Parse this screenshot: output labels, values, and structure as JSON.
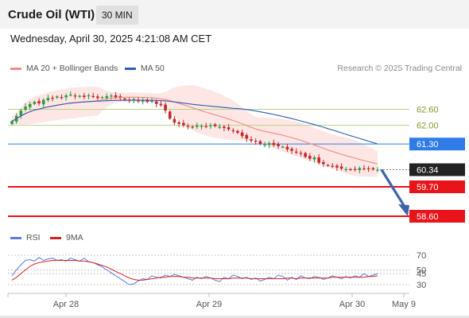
{
  "header": {
    "title": "Crude Oil (WTI)",
    "timeframe": "30 MIN"
  },
  "datetime": "Wednesday, April 30, 2025 4:21:08 AM CET",
  "legend": {
    "ma20_label": "MA 20 + Bollinger Bands",
    "ma50_label": "MA 50",
    "rsi_label": "RSI",
    "rsi_ma_label": "9MA",
    "credit": "Research © 2025 Trading Central"
  },
  "colors": {
    "ma20": "#f08a82",
    "ma50": "#2f5cb5",
    "bollinger_fill": "#fde3e1",
    "bull_candle": "#2e9b43",
    "bear_candle": "#c62828",
    "support": "#e8141a",
    "pivot": "#2f7ce8",
    "resistance_line": "#b9d18a",
    "resistance_text": "#7a9a2a",
    "arrow": "#3c64a8",
    "rsi": "#5b7be0",
    "rsi_ma": "#d62020"
  },
  "chart_data": {
    "type": "candlestick",
    "instrument": "Crude Oil (WTI)",
    "timeframe": "30 MIN",
    "price_axis": {
      "ylim": [
        58.4,
        63.4
      ]
    },
    "x_ticks": [
      "Apr 28",
      "Apr 29",
      "Apr 30",
      "May 9"
    ],
    "closes": [
      62.15,
      62.35,
      62.55,
      62.7,
      62.8,
      62.88,
      62.82,
      62.95,
      63.02,
      63.0,
      63.08,
      63.05,
      63.12,
      63.15,
      63.08,
      63.1,
      63.06,
      63.12,
      63.08,
      63.02,
      63.05,
      63.09,
      63.11,
      63.05,
      63.02,
      62.96,
      62.92,
      62.98,
      62.9,
      62.95,
      62.88,
      62.92,
      62.8,
      62.75,
      62.55,
      62.25,
      62.1,
      62.05,
      62.0,
      61.95,
      61.92,
      62.0,
      61.98,
      61.96,
      62.0,
      61.97,
      61.95,
      61.9,
      61.85,
      61.8,
      61.72,
      61.6,
      61.5,
      61.42,
      61.38,
      61.3,
      61.28,
      61.33,
      61.26,
      61.22,
      61.2,
      61.1,
      61.05,
      60.98,
      60.95,
      60.82,
      60.75,
      60.8,
      60.6,
      60.55,
      60.5,
      60.48,
      60.42,
      60.38,
      60.36,
      60.34,
      60.36,
      60.4,
      60.38,
      60.36,
      60.35,
      60.34
    ],
    "levels": [
      {
        "value": 62.6,
        "label": "62.60",
        "type": "resistance"
      },
      {
        "value": 62.0,
        "label": "62.00",
        "type": "resistance"
      },
      {
        "value": 61.3,
        "label": "61.30",
        "type": "pivot"
      },
      {
        "value": 60.34,
        "label": "60.34",
        "type": "last"
      },
      {
        "value": 59.7,
        "label": "59.70",
        "type": "support"
      },
      {
        "value": 58.6,
        "label": "58.60",
        "type": "support"
      }
    ],
    "projection": {
      "from": 60.34,
      "to": 58.6
    },
    "rsi": {
      "ylim": [
        20,
        80
      ],
      "levels": [
        70,
        50,
        45,
        30
      ],
      "tick_labels": [
        "70",
        "50",
        "45",
        "30"
      ],
      "values": [
        42,
        50,
        57,
        63,
        64,
        62,
        67,
        63,
        65,
        66,
        63,
        64,
        62,
        66,
        64,
        62,
        66,
        61,
        60,
        57,
        54,
        50,
        46,
        42,
        38,
        34,
        30,
        31,
        35,
        38,
        37,
        42,
        40,
        39,
        43,
        41,
        44,
        42,
        40,
        38,
        36,
        40,
        38,
        41,
        39,
        36,
        34,
        40,
        38,
        43,
        41,
        38,
        40,
        37,
        39,
        35,
        37,
        40,
        38,
        43,
        41,
        36,
        40,
        37,
        42,
        39,
        38,
        41,
        40,
        37,
        39,
        42,
        40,
        38,
        41,
        39,
        42,
        40,
        45,
        41,
        43,
        45
      ],
      "ma_values": [
        36,
        40,
        45,
        50,
        55,
        58,
        60,
        61,
        62,
        63,
        63,
        63,
        63,
        63,
        63,
        62,
        62,
        61,
        60,
        58,
        56,
        54,
        51,
        48,
        45,
        42,
        39,
        37,
        36,
        36,
        37,
        38,
        39,
        40,
        40,
        41,
        41,
        41,
        40,
        40,
        39,
        39,
        39,
        39,
        39,
        38,
        38,
        38,
        38,
        39,
        39,
        39,
        39,
        38,
        38,
        38,
        38,
        38,
        38,
        38,
        38,
        39,
        39,
        38,
        39,
        39,
        39,
        39,
        39,
        39,
        39,
        40,
        40,
        40,
        40,
        40,
        40,
        40,
        40,
        41,
        41,
        42
      ]
    }
  }
}
